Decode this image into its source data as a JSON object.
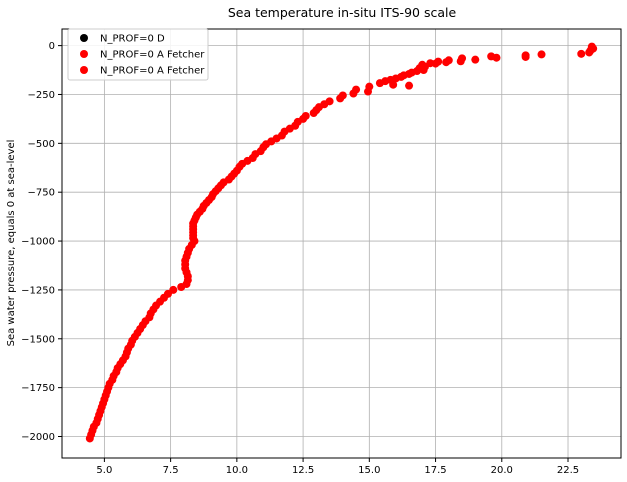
{
  "chart_data": {
    "type": "scatter",
    "title": "Sea temperature in-situ ITS-90 scale",
    "xlabel": "",
    "ylabel": "Sea water pressure, equals 0 at sea-level",
    "xlim": [
      3.4,
      24.5
    ],
    "ylim": [
      -2110,
      85
    ],
    "grid": true,
    "legend_position": "top-left",
    "x_ticks": [
      5.0,
      7.5,
      10.0,
      12.5,
      15.0,
      17.5,
      20.0,
      22.5
    ],
    "x_tick_labels": [
      "5.0",
      "7.5",
      "10.0",
      "12.5",
      "15.0",
      "17.5",
      "20.0",
      "22.5"
    ],
    "y_ticks": [
      0,
      -250,
      -500,
      -750,
      -1000,
      -1250,
      -1500,
      -1750,
      -2000
    ],
    "y_tick_labels": [
      "0",
      "−250",
      "−500",
      "−750",
      "−1000",
      "−1250",
      "−1500",
      "−1750",
      "−2000"
    ],
    "legend": [
      {
        "label": "N_PROF=0 D",
        "color": "#000000"
      },
      {
        "label": "N_PROF=0 A Fetcher",
        "color": "#ff0000"
      },
      {
        "label": "N_PROF=0 A Fetcher",
        "color": "#ff0000"
      }
    ],
    "series": [
      {
        "color": "#ff0000",
        "points": [
          [
            23.4,
            -5
          ],
          [
            23.45,
            -15
          ],
          [
            23.35,
            -25
          ],
          [
            23.3,
            -35
          ],
          [
            23.0,
            -42
          ],
          [
            21.5,
            -45
          ],
          [
            20.9,
            -50
          ],
          [
            20.9,
            -58
          ],
          [
            19.8,
            -62
          ],
          [
            19.6,
            -55
          ],
          [
            19.0,
            -72
          ],
          [
            18.5,
            -65
          ],
          [
            18.45,
            -80
          ],
          [
            18.0,
            -75
          ],
          [
            17.9,
            -85
          ],
          [
            17.6,
            -82
          ],
          [
            17.5,
            -92
          ],
          [
            17.3,
            -90
          ],
          [
            17.0,
            -98
          ],
          [
            17.1,
            -108
          ],
          [
            16.9,
            -115
          ],
          [
            17.05,
            -125
          ],
          [
            16.8,
            -130
          ],
          [
            16.6,
            -138
          ],
          [
            16.5,
            -145
          ],
          [
            16.3,
            -152
          ],
          [
            16.2,
            -160
          ],
          [
            16.0,
            -168
          ],
          [
            15.8,
            -175
          ],
          [
            15.6,
            -182
          ],
          [
            15.4,
            -192
          ],
          [
            15.9,
            -200
          ],
          [
            16.5,
            -205
          ],
          [
            15.0,
            -210
          ],
          [
            14.95,
            -235
          ],
          [
            14.5,
            -225
          ],
          [
            14.4,
            -245
          ],
          [
            14.0,
            -255
          ],
          [
            13.9,
            -270
          ],
          [
            13.5,
            -285
          ],
          [
            13.3,
            -300
          ],
          [
            13.1,
            -315
          ],
          [
            13.0,
            -330
          ],
          [
            12.9,
            -345
          ],
          [
            12.6,
            -360
          ],
          [
            12.5,
            -375
          ],
          [
            12.3,
            -390
          ],
          [
            12.2,
            -410
          ],
          [
            12.0,
            -425
          ],
          [
            11.8,
            -440
          ],
          [
            11.7,
            -460
          ],
          [
            11.5,
            -475
          ],
          [
            11.3,
            -490
          ],
          [
            11.1,
            -505
          ],
          [
            11.0,
            -520
          ],
          [
            10.9,
            -540
          ],
          [
            10.7,
            -555
          ],
          [
            10.6,
            -575
          ],
          [
            10.4,
            -590
          ],
          [
            10.2,
            -605
          ],
          [
            10.1,
            -620
          ],
          [
            10.0,
            -640
          ],
          [
            9.9,
            -655
          ],
          [
            9.8,
            -670
          ],
          [
            9.7,
            -685
          ],
          [
            9.5,
            -700
          ],
          [
            9.4,
            -715
          ],
          [
            9.3,
            -730
          ],
          [
            9.2,
            -745
          ],
          [
            9.1,
            -760
          ],
          [
            9.05,
            -775
          ],
          [
            8.95,
            -790
          ],
          [
            8.85,
            -805
          ],
          [
            8.75,
            -820
          ],
          [
            8.7,
            -835
          ],
          [
            8.6,
            -850
          ],
          [
            8.5,
            -865
          ],
          [
            8.45,
            -880
          ],
          [
            8.4,
            -895
          ],
          [
            8.35,
            -910
          ],
          [
            8.35,
            -925
          ],
          [
            8.35,
            -940
          ],
          [
            8.35,
            -955
          ],
          [
            8.35,
            -970
          ],
          [
            8.35,
            -985
          ],
          [
            8.4,
            -1000
          ],
          [
            8.3,
            -1020
          ],
          [
            8.2,
            -1040
          ],
          [
            8.15,
            -1060
          ],
          [
            8.1,
            -1080
          ],
          [
            8.05,
            -1100
          ],
          [
            8.05,
            -1120
          ],
          [
            8.05,
            -1140
          ],
          [
            8.1,
            -1160
          ],
          [
            8.15,
            -1180
          ],
          [
            8.15,
            -1200
          ],
          [
            8.1,
            -1220
          ],
          [
            7.9,
            -1235
          ],
          [
            7.6,
            -1250
          ],
          [
            7.4,
            -1270
          ],
          [
            7.25,
            -1290
          ],
          [
            7.1,
            -1310
          ],
          [
            6.95,
            -1330
          ],
          [
            6.85,
            -1350
          ],
          [
            6.75,
            -1370
          ],
          [
            6.7,
            -1390
          ],
          [
            6.55,
            -1410
          ],
          [
            6.45,
            -1430
          ],
          [
            6.35,
            -1450
          ],
          [
            6.25,
            -1470
          ],
          [
            6.15,
            -1490
          ],
          [
            6.05,
            -1510
          ],
          [
            6.0,
            -1530
          ],
          [
            5.9,
            -1550
          ],
          [
            5.85,
            -1570
          ],
          [
            5.8,
            -1590
          ],
          [
            5.7,
            -1610
          ],
          [
            5.6,
            -1630
          ],
          [
            5.5,
            -1650
          ],
          [
            5.45,
            -1670
          ],
          [
            5.35,
            -1690
          ],
          [
            5.3,
            -1710
          ],
          [
            5.2,
            -1730
          ],
          [
            5.15,
            -1750
          ],
          [
            5.1,
            -1770
          ],
          [
            5.05,
            -1790
          ],
          [
            5.0,
            -1810
          ],
          [
            4.95,
            -1830
          ],
          [
            4.9,
            -1850
          ],
          [
            4.85,
            -1870
          ],
          [
            4.8,
            -1890
          ],
          [
            4.75,
            -1910
          ],
          [
            4.7,
            -1930
          ],
          [
            4.6,
            -1950
          ],
          [
            4.55,
            -1970
          ],
          [
            4.5,
            -1990
          ],
          [
            4.45,
            -2010
          ]
        ]
      }
    ]
  }
}
